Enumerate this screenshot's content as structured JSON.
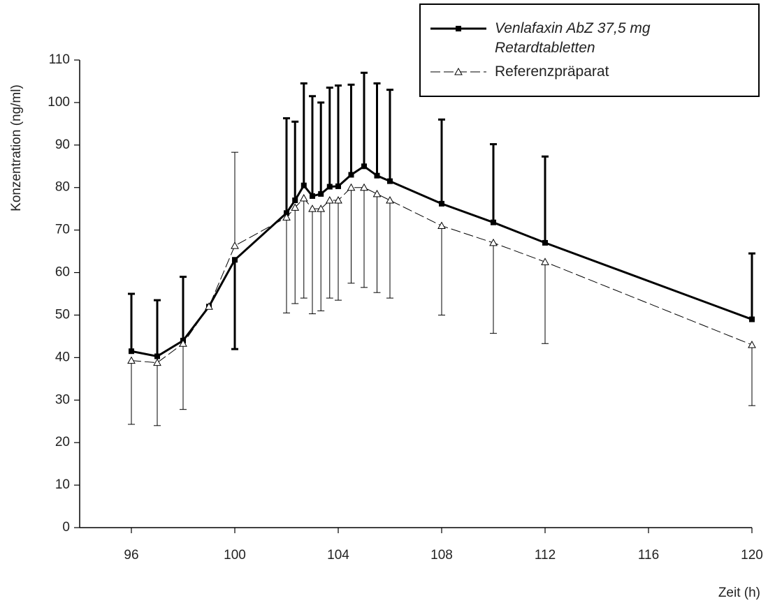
{
  "chart_data": {
    "type": "line",
    "y_label": "Konzentration (ng/ml)",
    "x_label": "Zeit (h)",
    "x": [
      96,
      97,
      98,
      99,
      100,
      102,
      102.33,
      102.67,
      103,
      103.33,
      103.67,
      104,
      104.5,
      105,
      105.5,
      106,
      108,
      110,
      112,
      120
    ],
    "xlim": [
      94,
      120
    ],
    "xticks": [
      96,
      100,
      104,
      108,
      112,
      116,
      120
    ],
    "ylim": [
      0,
      110
    ],
    "yticks": [
      0,
      10,
      20,
      30,
      40,
      50,
      60,
      70,
      80,
      90,
      100,
      110
    ],
    "series": [
      {
        "name": "Venlafaxin AbZ 37,5 mg Retardtabletten",
        "color": "#000000",
        "marker": "square",
        "dashed": false,
        "values": [
          41.5,
          40.3,
          44,
          52,
          63,
          74,
          77,
          80.5,
          78,
          78.5,
          80.2,
          80.3,
          83,
          85,
          82.8,
          81.5,
          76.2,
          71.8,
          67,
          49
        ],
        "error_plus": [
          13.5,
          13.2,
          15,
          null,
          null,
          22.3,
          18.5,
          24,
          23.5,
          21.5,
          23.3,
          23.7,
          21.2,
          22,
          21.7,
          21.5,
          19.8,
          18.4,
          20.3,
          15.5
        ],
        "error_minus": [
          null,
          null,
          null,
          null,
          21,
          null,
          null,
          null,
          null,
          null,
          null,
          null,
          null,
          null,
          null,
          null,
          null,
          null,
          null,
          null
        ]
      },
      {
        "name": "Referenzpräparat",
        "color": "#000000",
        "marker": "triangle",
        "dashed": true,
        "values": [
          39.3,
          38.8,
          43.3,
          52,
          66.3,
          73,
          75.3,
          77.5,
          75,
          75,
          77,
          77,
          80,
          80,
          78.5,
          77,
          71,
          67,
          62.5,
          43
        ],
        "error_plus": [
          null,
          null,
          null,
          null,
          22,
          null,
          null,
          null,
          null,
          null,
          null,
          null,
          null,
          null,
          null,
          null,
          null,
          null,
          null,
          null
        ],
        "error_minus": [
          15,
          14.8,
          15.5,
          null,
          null,
          22.5,
          22.6,
          23.5,
          24.7,
          24,
          23,
          23.5,
          22.5,
          23.5,
          23.2,
          23,
          21,
          21.3,
          19.2,
          14.3
        ]
      }
    ]
  }
}
